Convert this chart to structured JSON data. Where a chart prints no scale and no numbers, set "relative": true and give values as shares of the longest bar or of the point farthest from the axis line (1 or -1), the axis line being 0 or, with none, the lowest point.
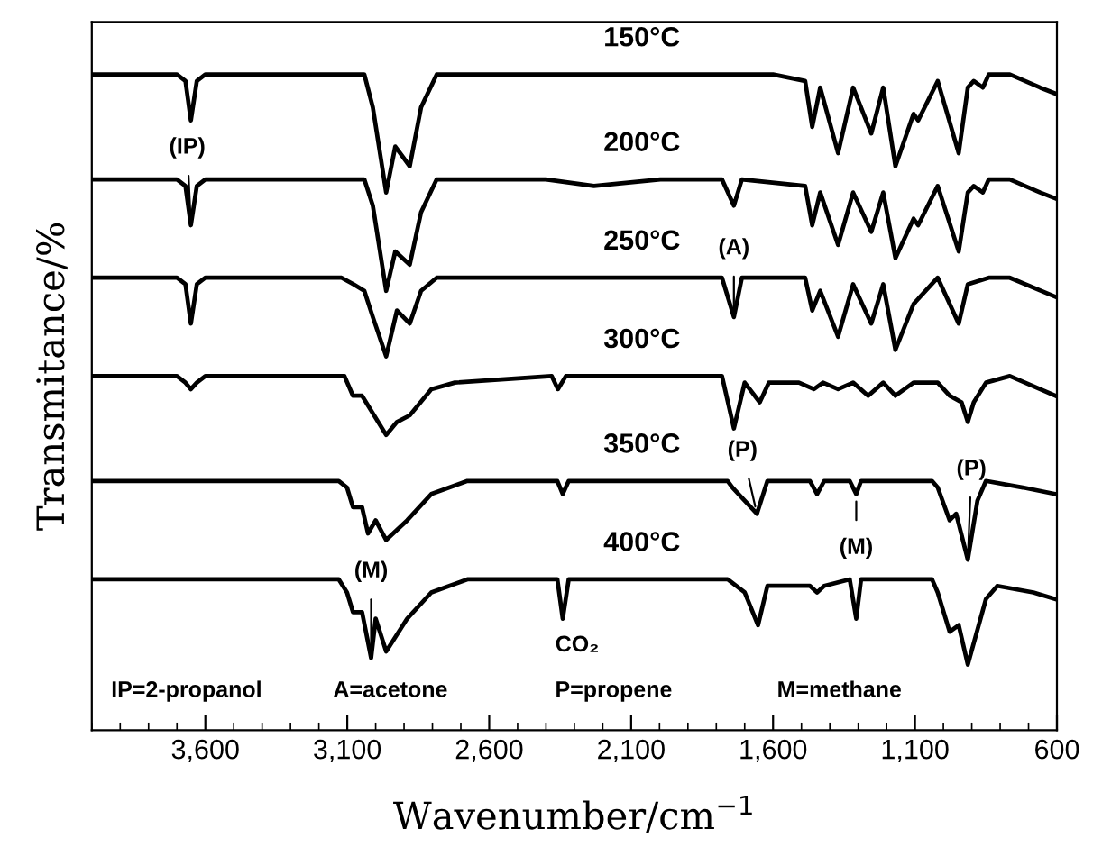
{
  "chart_data": {
    "type": "line",
    "relative": true,
    "xlabel": "Wavenumber/cm$^{−1}$",
    "ylabel": "Transmitance/%",
    "xlim": [
      4000,
      600
    ],
    "xticks": [
      {
        "value": 3600,
        "label": "3,600"
      },
      {
        "value": 3100,
        "label": "3,100"
      },
      {
        "value": 2600,
        "label": "2,600"
      },
      {
        "value": 2100,
        "label": "2,100"
      },
      {
        "value": 1600,
        "label": "1,600"
      },
      {
        "value": 1100,
        "label": "1,100"
      },
      600
    ],
    "tick_labels": "x",
    "grid": false,
    "legend": false,
    "marker": "none",
    "line_style": "solid",
    "series": [
      {
        "name": "150°C",
        "color": "#000000",
        "x": [
          4000,
          3700,
          3670,
          3651,
          3630,
          3600,
          3100,
          3040,
          3010,
          2963,
          2931,
          2880,
          2840,
          2785,
          1600,
          1487,
          1462,
          1434,
          1371,
          1318,
          1254,
          1212,
          1169,
          1105,
          1089,
          1020,
          946,
          914,
          893,
          861,
          840,
          766,
          659,
          600
        ],
        "values": [
          1.0,
          1.0,
          0.99,
          0.93,
          0.99,
          1.0,
          1.0,
          1.0,
          0.95,
          0.82,
          0.89,
          0.86,
          0.95,
          1.0,
          1.0,
          0.99,
          0.92,
          0.98,
          0.88,
          0.98,
          0.91,
          0.98,
          0.86,
          0.94,
          0.93,
          0.99,
          0.88,
          0.98,
          0.99,
          0.98,
          1.0,
          1.0,
          0.98,
          0.97
        ]
      },
      {
        "name": "200°C",
        "color": "#000000",
        "x": [
          4000,
          3700,
          3670,
          3651,
          3630,
          3600,
          3040,
          3010,
          2963,
          2931,
          2880,
          2840,
          2785,
          2400,
          2231,
          1997,
          1780,
          1738,
          1710,
          1487,
          1462,
          1434,
          1371,
          1318,
          1254,
          1212,
          1169,
          1105,
          1089,
          1020,
          946,
          914,
          893,
          861,
          840,
          766,
          659,
          600
        ],
        "values": [
          0.84,
          0.84,
          0.83,
          0.77,
          0.83,
          0.84,
          0.84,
          0.8,
          0.67,
          0.73,
          0.71,
          0.79,
          0.84,
          0.84,
          0.83,
          0.84,
          0.84,
          0.8,
          0.84,
          0.83,
          0.77,
          0.82,
          0.74,
          0.82,
          0.76,
          0.82,
          0.72,
          0.78,
          0.77,
          0.83,
          0.73,
          0.82,
          0.83,
          0.82,
          0.84,
          0.84,
          0.82,
          0.81
        ]
      },
      {
        "name": "250°C",
        "color": "#000000",
        "x": [
          4000,
          3700,
          3670,
          3651,
          3630,
          3600,
          3120,
          3078,
          3040,
          3010,
          2963,
          2925,
          2880,
          2840,
          2785,
          1780,
          1738,
          1710,
          1487,
          1462,
          1434,
          1371,
          1318,
          1254,
          1212,
          1169,
          1105,
          1020,
          946,
          914,
          840,
          766,
          600
        ],
        "values": [
          0.69,
          0.69,
          0.68,
          0.62,
          0.68,
          0.69,
          0.69,
          0.68,
          0.67,
          0.63,
          0.57,
          0.64,
          0.62,
          0.67,
          0.69,
          0.69,
          0.63,
          0.69,
          0.69,
          0.64,
          0.67,
          0.6,
          0.68,
          0.62,
          0.68,
          0.58,
          0.65,
          0.69,
          0.62,
          0.68,
          0.69,
          0.69,
          0.66
        ]
      },
      {
        "name": "300°C",
        "color": "#000000",
        "x": [
          4000,
          3700,
          3670,
          3651,
          3630,
          3600,
          3110,
          3080,
          3048,
          2963,
          2925,
          2880,
          2804,
          2721,
          2380,
          2358,
          2330,
          1780,
          1738,
          1700,
          1647,
          1615,
          1509,
          1456,
          1424,
          1371,
          1318,
          1265,
          1212,
          1169,
          1105,
          1020,
          978,
          936,
          914,
          893,
          850,
          766,
          606
        ],
        "values": [
          0.54,
          0.54,
          0.53,
          0.52,
          0.53,
          0.54,
          0.54,
          0.51,
          0.51,
          0.45,
          0.47,
          0.48,
          0.52,
          0.53,
          0.54,
          0.52,
          0.54,
          0.54,
          0.46,
          0.53,
          0.5,
          0.53,
          0.53,
          0.52,
          0.53,
          0.52,
          0.53,
          0.51,
          0.53,
          0.51,
          0.53,
          0.53,
          0.51,
          0.5,
          0.47,
          0.5,
          0.53,
          0.54,
          0.51
        ]
      },
      {
        "name": "350°C",
        "color": "#000000",
        "x": [
          4000,
          3130,
          3101,
          3080,
          3048,
          3027,
          3000,
          2963,
          2889,
          2804,
          2677,
          2400,
          2360,
          2341,
          2320,
          1760,
          1743,
          1657,
          1620,
          1470,
          1445,
          1420,
          1330,
          1307,
          1290,
          1040,
          1020,
          978,
          955,
          914,
          880,
          850,
          720,
          606
        ],
        "values": [
          0.38,
          0.38,
          0.37,
          0.34,
          0.34,
          0.3,
          0.32,
          0.29,
          0.32,
          0.36,
          0.38,
          0.38,
          0.38,
          0.36,
          0.38,
          0.38,
          0.37,
          0.33,
          0.38,
          0.38,
          0.36,
          0.38,
          0.38,
          0.36,
          0.38,
          0.38,
          0.37,
          0.32,
          0.33,
          0.26,
          0.35,
          0.38,
          0.37,
          0.36
        ]
      },
      {
        "name": "400°C",
        "color": "#000000",
        "x": [
          4000,
          3130,
          3101,
          3080,
          3048,
          3016,
          3000,
          2963,
          2889,
          2804,
          2677,
          2400,
          2360,
          2341,
          2320,
          1760,
          1700,
          1653,
          1620,
          1470,
          1445,
          1420,
          1330,
          1307,
          1290,
          1040,
          1020,
          978,
          946,
          914,
          850,
          810,
          683,
          606
        ],
        "values": [
          0.23,
          0.23,
          0.21,
          0.18,
          0.18,
          0.11,
          0.17,
          0.12,
          0.17,
          0.21,
          0.23,
          0.23,
          0.23,
          0.17,
          0.23,
          0.23,
          0.21,
          0.16,
          0.22,
          0.22,
          0.21,
          0.22,
          0.23,
          0.17,
          0.23,
          0.23,
          0.21,
          0.15,
          0.16,
          0.1,
          0.2,
          0.22,
          0.21,
          0.2
        ]
      }
    ],
    "annotations": [
      {
        "text": "(IP)",
        "x": 3651,
        "y": 0.77
      },
      {
        "text": "(A)",
        "x": 1738,
        "y": 0.63
      },
      {
        "text": "(P)",
        "x": 1657,
        "y": 0.33
      },
      {
        "text": "(P)",
        "x": 914,
        "y": 0.26
      },
      {
        "text": "(M)",
        "x": 1307,
        "y": 0.36
      },
      {
        "text": "(M)",
        "x": 3016,
        "y": 0.11
      },
      {
        "text": "CO₂",
        "x": 2341,
        "y": 0.17
      },
      "IP=2-propanol",
      "A=acetone",
      "P=propene",
      "M=methane"
    ]
  }
}
